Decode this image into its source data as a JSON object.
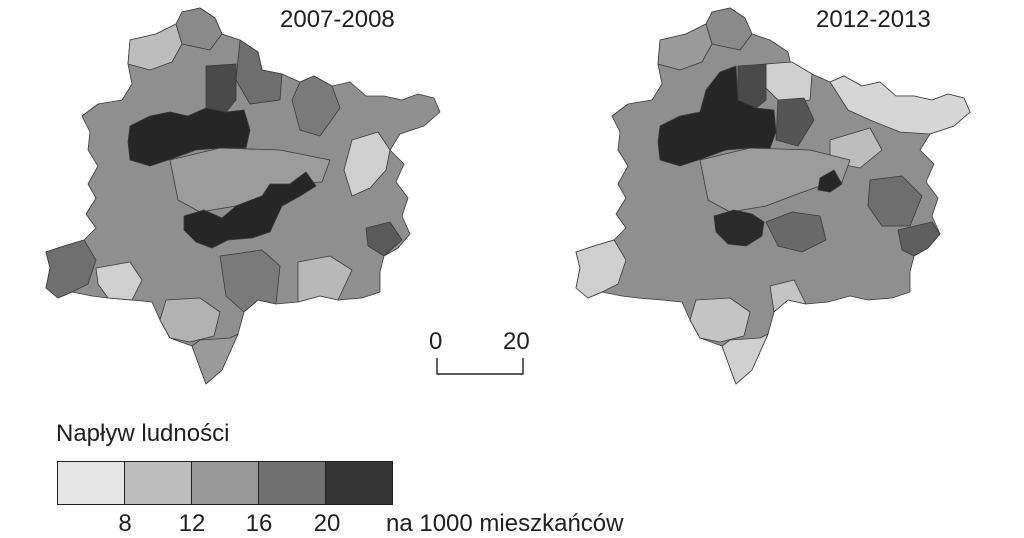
{
  "maps": [
    {
      "title": "2007-2008"
    },
    {
      "title": "2012-2013"
    }
  ],
  "scale_bar": {
    "start_label": "0",
    "end_label": "20"
  },
  "legend": {
    "title": "Napływ ludności",
    "classes": [
      {
        "color": "#e6e6e6"
      },
      {
        "color": "#bdbdbd"
      },
      {
        "color": "#989898"
      },
      {
        "color": "#707070"
      },
      {
        "color": "#353535"
      }
    ],
    "breaks": [
      "8",
      "12",
      "16",
      "20"
    ],
    "unit": "na 1000 mieszkańców"
  }
}
